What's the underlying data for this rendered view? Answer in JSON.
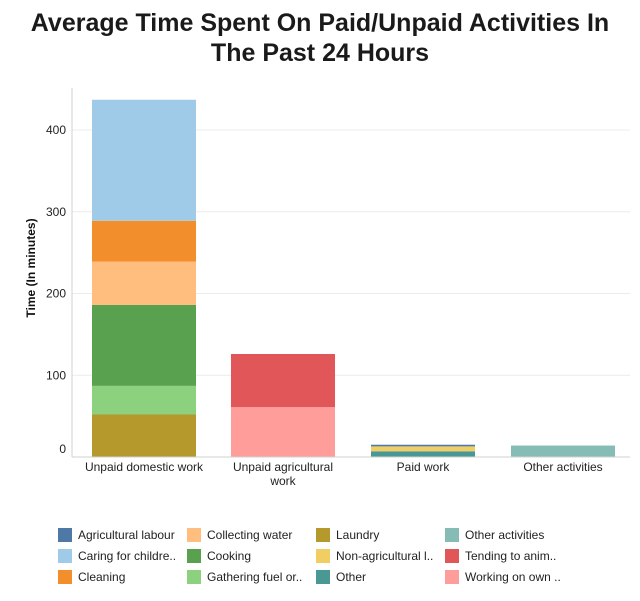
{
  "title_lines": [
    "Average Time Spent On Paid/Unpaid Activities In",
    "The Past 24 Hours"
  ],
  "colors": {
    "agricultural_labour": "#4e79a7",
    "caring": "#a0cbe8",
    "cleaning": "#f28e2b",
    "collecting_water": "#ffbe7d",
    "cooking": "#59a14f",
    "gathering_fuel": "#8cd17d",
    "laundry": "#b6992d",
    "non_agricultural": "#f1ce63",
    "other": "#499894",
    "other_activities": "#86bcb6",
    "tending_animals": "#e15759",
    "working_own": "#ff9d9a"
  },
  "legend": [
    {
      "label": "Agricultural labour",
      "color_key": "agricultural_labour"
    },
    {
      "label": "Collecting water",
      "color_key": "collecting_water"
    },
    {
      "label": "Laundry",
      "color_key": "laundry"
    },
    {
      "label": "Other activities",
      "color_key": "other_activities"
    },
    {
      "label": "Caring for childre..",
      "color_key": "caring"
    },
    {
      "label": "Cooking",
      "color_key": "cooking"
    },
    {
      "label": "Non-agricultural l..",
      "color_key": "non_agricultural"
    },
    {
      "label": "Tending to anim..",
      "color_key": "tending_animals"
    },
    {
      "label": "Cleaning",
      "color_key": "cleaning"
    },
    {
      "label": "Gathering fuel or..",
      "color_key": "gathering_fuel"
    },
    {
      "label": "Other",
      "color_key": "other"
    },
    {
      "label": "Working on own ..",
      "color_key": "working_own"
    }
  ],
  "chart_data": {
    "type": "bar",
    "stacked": true,
    "title": "Average Time Spent On Paid/Unpaid Activities In The Past 24 Hours",
    "xlabel": "",
    "ylabel": "Time (In minutes)",
    "ylim": [
      0,
      460
    ],
    "yticks": [
      0,
      100,
      200,
      300,
      400
    ],
    "categories": [
      {
        "label_lines": [
          "Unpaid domestic work"
        ]
      },
      {
        "label_lines": [
          "Unpaid agricultural",
          "work"
        ]
      },
      {
        "label_lines": [
          "Paid work"
        ]
      },
      {
        "label_lines": [
          "Other activities"
        ]
      }
    ],
    "stacks": [
      [
        {
          "series": "Laundry",
          "color_key": "laundry",
          "value": 52
        },
        {
          "series": "Gathering fuel or..",
          "color_key": "gathering_fuel",
          "value": 35
        },
        {
          "series": "Cooking",
          "color_key": "cooking",
          "value": 99
        },
        {
          "series": "Collecting water",
          "color_key": "collecting_water",
          "value": 53
        },
        {
          "series": "Cleaning",
          "color_key": "cleaning",
          "value": 50
        },
        {
          "series": "Caring for childre..",
          "color_key": "caring",
          "value": 148
        }
      ],
      [
        {
          "series": "Working on own ..",
          "color_key": "working_own",
          "value": 61
        },
        {
          "series": "Tending to anim..",
          "color_key": "tending_animals",
          "value": 65
        }
      ],
      [
        {
          "series": "Other",
          "color_key": "other",
          "value": 7
        },
        {
          "series": "Non-agricultural l..",
          "color_key": "non_agricultural",
          "value": 6
        },
        {
          "series": "Agricultural labour",
          "color_key": "agricultural_labour",
          "value": 2
        }
      ],
      [
        {
          "series": "Other activities",
          "color_key": "other_activities",
          "value": 14
        }
      ]
    ],
    "grid": true,
    "legend_position": "bottom"
  }
}
